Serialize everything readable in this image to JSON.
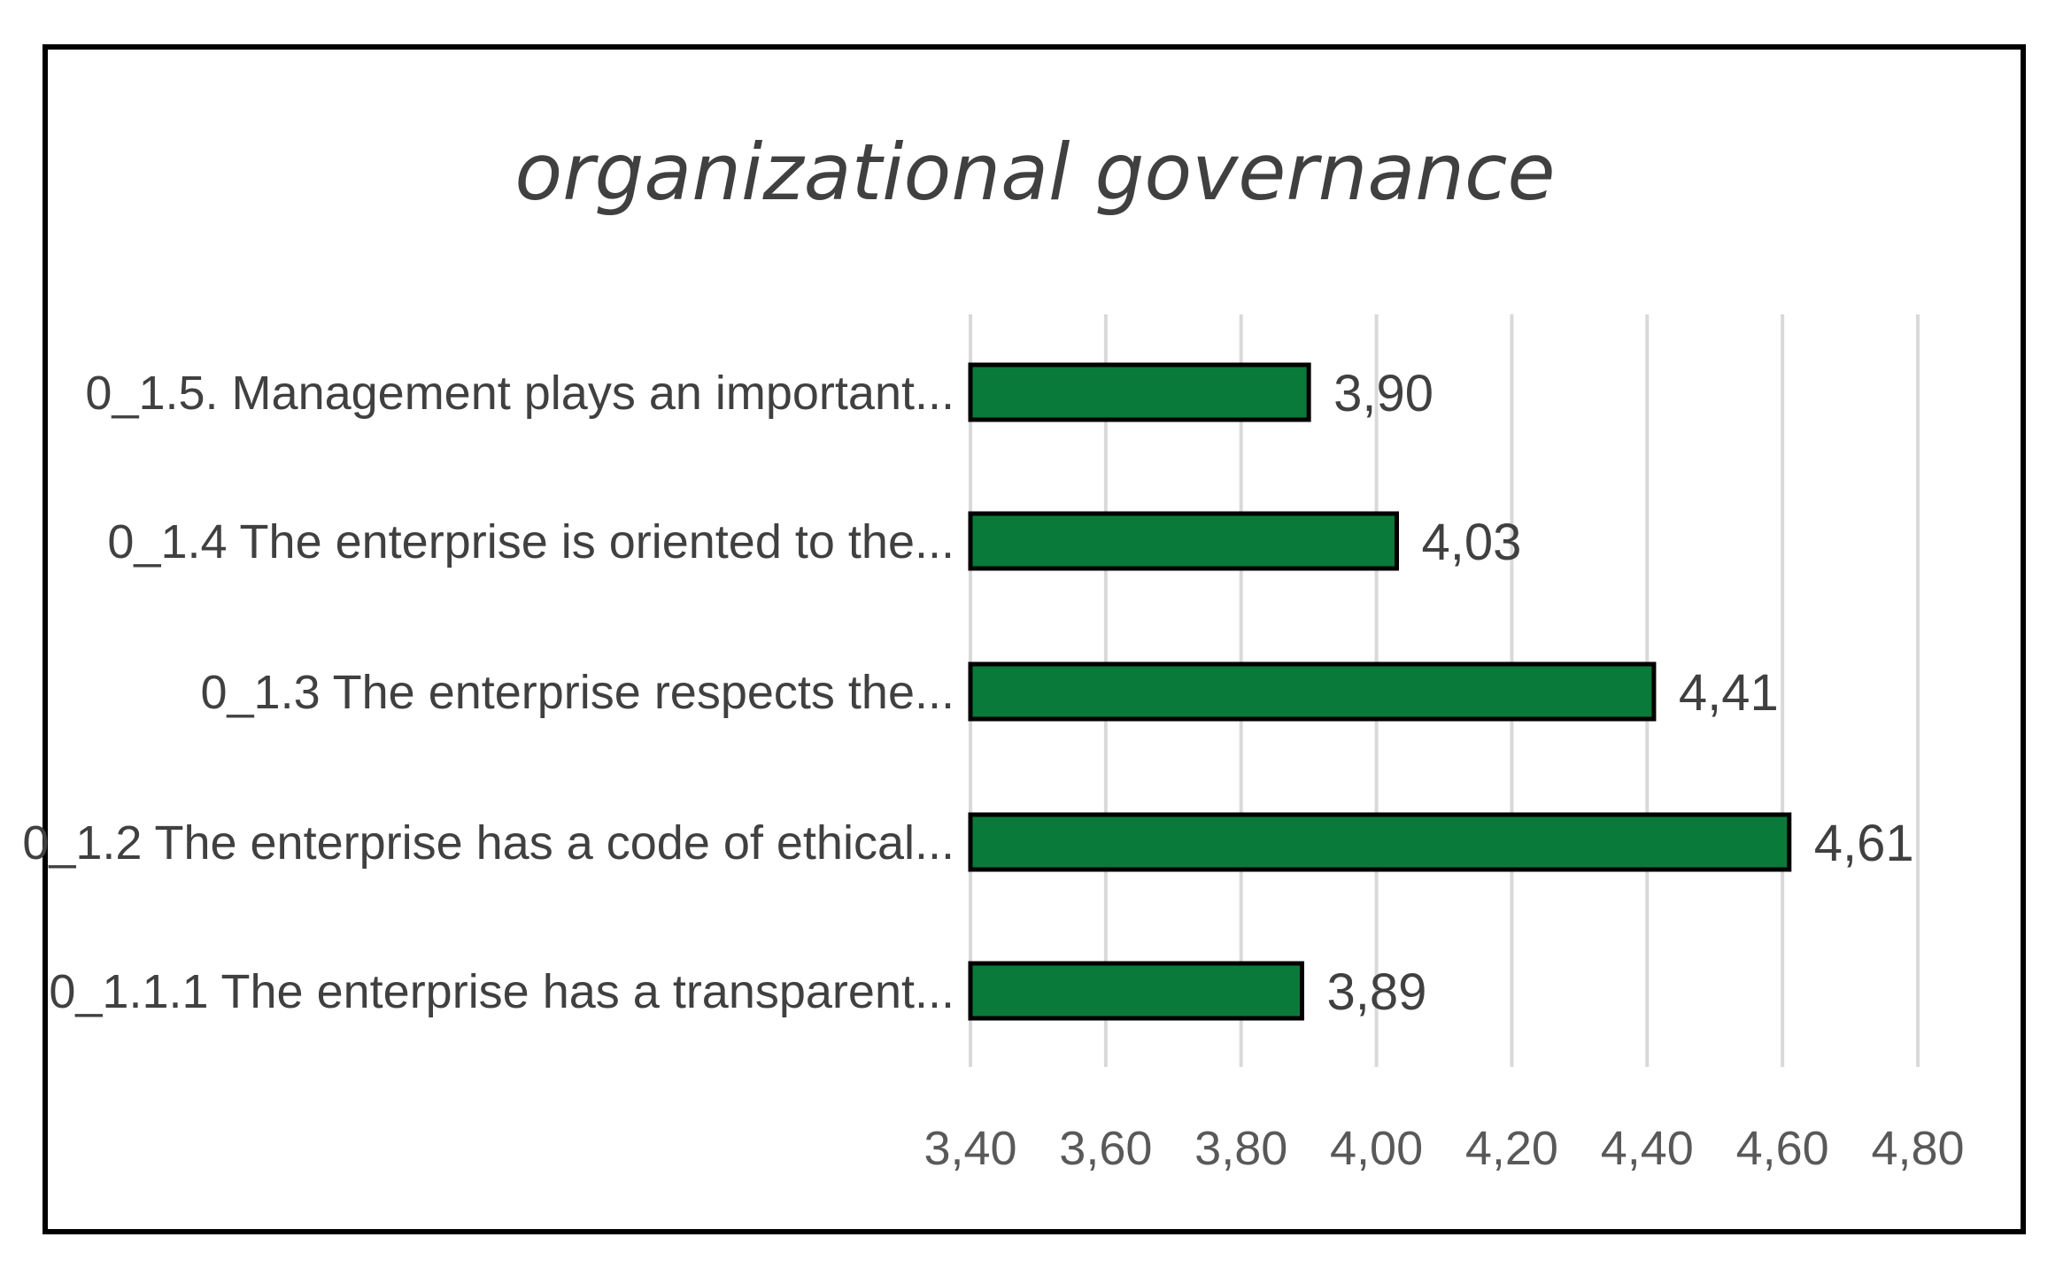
{
  "chart_data": {
    "type": "bar",
    "orientation": "horizontal",
    "title": "organizational governance",
    "categories": [
      "0_1.5. Management plays an important...",
      "0_1.4 The enterprise is oriented to the...",
      "0_1.3 The enterprise respects the...",
      "0_1.2 The enterprise has a code of ethical...",
      "0_1.1.1 The enterprise has a transparent..."
    ],
    "values": [
      3.9,
      4.03,
      4.41,
      4.61,
      3.89
    ],
    "data_labels": [
      "3,90",
      "4,03",
      "4,41",
      "4,61",
      "3,89"
    ],
    "xlim": [
      3.4,
      4.8
    ],
    "xticks": [
      3.4,
      3.6,
      3.8,
      4.0,
      4.2,
      4.4,
      4.6,
      4.8
    ],
    "xtick_labels": [
      "3,40",
      "3,60",
      "3,80",
      "4,00",
      "4,20",
      "4,40",
      "4,60",
      "4,80"
    ],
    "xlabel": "",
    "ylabel": "",
    "grid": "vertical",
    "legend": "none",
    "bar_color": "#0a7a3a",
    "bar_edge_color": "#000000"
  }
}
